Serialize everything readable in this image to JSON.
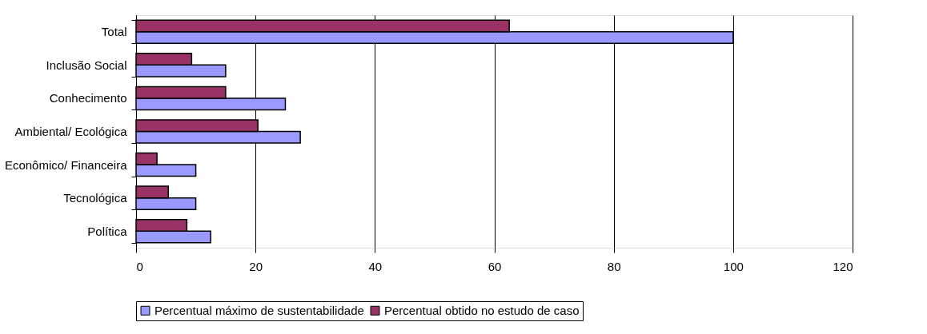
{
  "chart_data": {
    "type": "bar",
    "orientation": "horizontal",
    "categories": [
      "Total",
      "Inclusão Social",
      "Conhecimento",
      "Ambiental/ Ecológica",
      "Econômico/ Financeira",
      "Tecnológica",
      "Política"
    ],
    "series": [
      {
        "name": "Percentual máximo de sustentabilidade",
        "color": "#9999ff",
        "values": [
          100,
          15,
          25,
          27.5,
          10,
          10,
          12.5
        ]
      },
      {
        "name": "Percentual obtido no estudo de caso",
        "color": "#993366",
        "values": [
          62.5,
          9.3,
          15,
          20.4,
          3.5,
          5.4,
          8.5
        ]
      }
    ],
    "xlim": [
      0,
      120
    ],
    "xticks": [
      0,
      20,
      40,
      60,
      80,
      100,
      120
    ],
    "grid": "x",
    "legend": "bottom"
  }
}
